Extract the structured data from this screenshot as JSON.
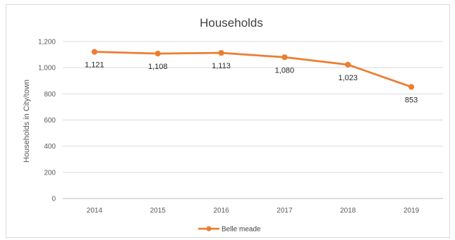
{
  "chart_data": {
    "type": "line",
    "title": "Households",
    "xlabel": "",
    "ylabel": "Households in City/town",
    "categories": [
      "2014",
      "2015",
      "2016",
      "2017",
      "2018",
      "2019"
    ],
    "series": [
      {
        "name": "Belle meade",
        "values": [
          1121,
          1108,
          1113,
          1080,
          1023,
          853
        ],
        "labels": [
          "1,121",
          "1,108",
          "1,113",
          "1,080",
          "1,023",
          "853"
        ]
      }
    ],
    "ylim": [
      0,
      1200
    ],
    "yticks": [
      0,
      200,
      400,
      600,
      800,
      1000,
      1200
    ],
    "ytick_labels": [
      "0",
      "200",
      "400",
      "600",
      "800",
      "1,000",
      "1,200"
    ],
    "grid": "horizontal",
    "legend_position": "bottom",
    "colors": {
      "series": "#ED7D31",
      "grid": "#d9d9d9",
      "axis": "#bfbfbf"
    }
  }
}
